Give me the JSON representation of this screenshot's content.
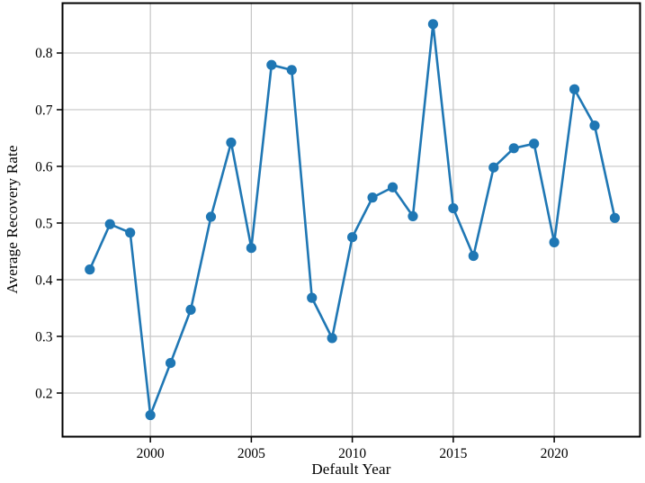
{
  "figure": {
    "background": "#ffffff"
  },
  "chart_data": {
    "type": "line",
    "title": "",
    "xlabel": "Default Year",
    "ylabel": "Average Recovery Rate",
    "x": [
      1997,
      1998,
      1999,
      2000,
      2001,
      2002,
      2003,
      2004,
      2005,
      2006,
      2007,
      2008,
      2009,
      2010,
      2011,
      2012,
      2013,
      2014,
      2015,
      2016,
      2017,
      2018,
      2019,
      2020,
      2021,
      2022,
      2023
    ],
    "series": [
      {
        "name": "Average Recovery Rate",
        "values": [
          0.418,
          0.498,
          0.483,
          0.161,
          0.253,
          0.347,
          0.511,
          0.642,
          0.456,
          0.779,
          0.77,
          0.368,
          0.297,
          0.475,
          0.545,
          0.563,
          0.512,
          0.851,
          0.526,
          0.442,
          0.598,
          0.632,
          0.64,
          0.466,
          0.736,
          0.672,
          0.509
        ]
      }
    ],
    "xlim": [
      1995.65,
      2024.25
    ],
    "ylim": [
      0.123,
      0.888
    ],
    "xticks": [
      2000,
      2005,
      2010,
      2015,
      2020
    ],
    "xtick_labels": [
      "2000",
      "2005",
      "2010",
      "2015",
      "2020"
    ],
    "yticks": [
      0.2,
      0.3,
      0.4,
      0.5,
      0.6,
      0.7,
      0.8
    ],
    "ytick_labels": [
      "0.2",
      "0.3",
      "0.4",
      "0.5",
      "0.6",
      "0.7",
      "0.8"
    ],
    "grid": true,
    "legend": "none",
    "marker": "circle",
    "colors": {
      "line": "#1f77b4",
      "marker": "#1f77b4",
      "grid": "#c6c6c6",
      "spine": "#000000",
      "text": "#000000"
    }
  }
}
